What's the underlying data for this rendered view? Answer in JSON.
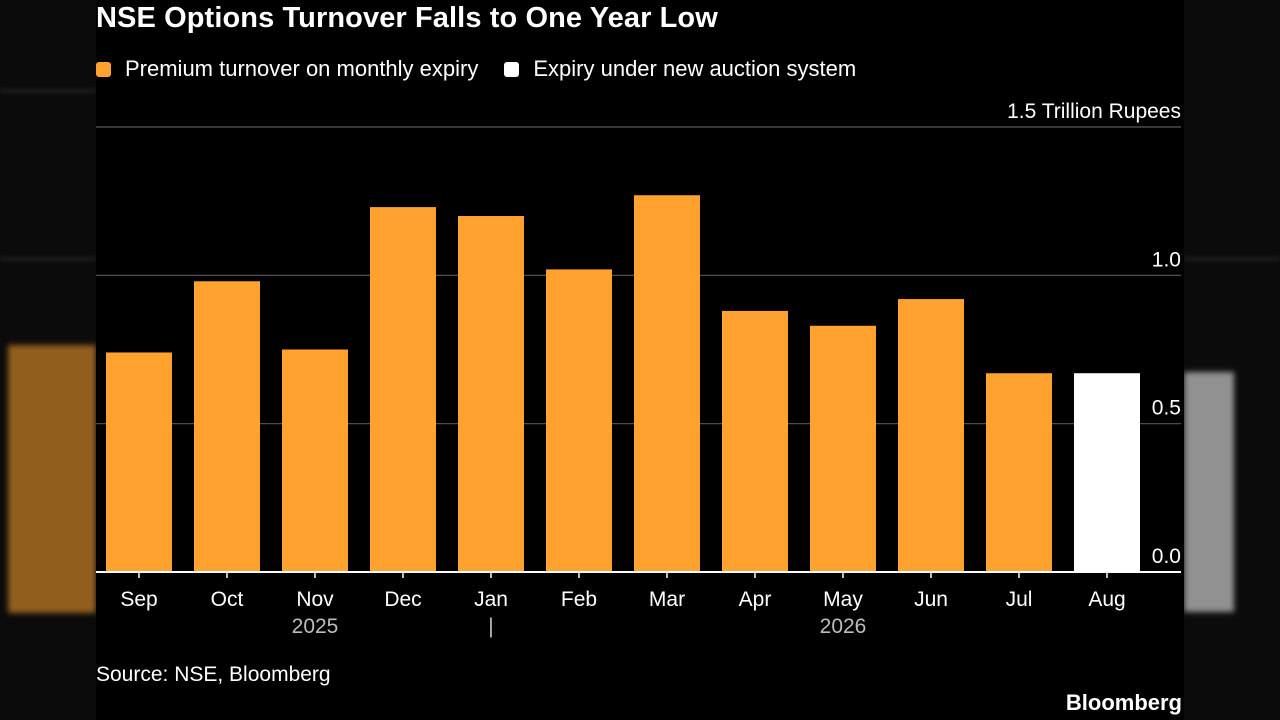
{
  "chart_data": {
    "type": "bar",
    "title": "NSE Options Turnover Falls to One Year Low",
    "unit_label": "1.5 Trillion Rupees",
    "categories": [
      "Sep",
      "Oct",
      "Nov",
      "Dec",
      "Jan",
      "Feb",
      "Mar",
      "Apr",
      "May",
      "Jun",
      "Jul",
      "Aug"
    ],
    "year_labels": [
      {
        "label": "2025",
        "category": "Nov"
      },
      {
        "label": "|",
        "category": "Jan"
      },
      {
        "label": "2026",
        "category": "May"
      }
    ],
    "values": [
      0.74,
      0.98,
      0.75,
      1.23,
      1.2,
      1.02,
      1.27,
      0.88,
      0.83,
      0.92,
      0.67,
      0.67
    ],
    "series_of_bar": [
      0,
      0,
      0,
      0,
      0,
      0,
      0,
      0,
      0,
      0,
      0,
      1
    ],
    "series": [
      {
        "name": "Premium turnover on monthly expiry",
        "color": "#ffa22f"
      },
      {
        "name": "Expiry under new auction system",
        "color": "#ffffff"
      }
    ],
    "y_ticks": [
      0.0,
      0.5,
      1.0,
      1.5
    ],
    "y_tick_labels": [
      "0.0",
      "0.5",
      "1.0",
      "1.5 Trillion Rupees"
    ],
    "ylim": [
      0,
      1.5
    ],
    "grid": true,
    "legend_position": "top-left"
  },
  "source": "Source: NSE, Bloomberg",
  "brand": "Bloomberg"
}
